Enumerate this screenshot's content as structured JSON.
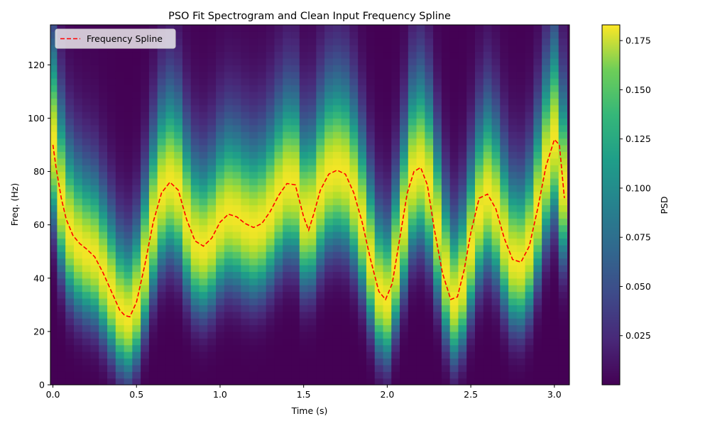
{
  "chart_data": {
    "type": "heatmap",
    "title": "PSO Fit Spectrogram and Clean Input Frequency Spline",
    "xlabel": "Time (s)",
    "ylabel": "Freq. (Hz)",
    "xlim": [
      -0.015,
      3.09
    ],
    "ylim": [
      0,
      135
    ],
    "x_ticks": [
      0.0,
      0.5,
      1.0,
      1.5,
      2.0,
      2.5,
      3.0
    ],
    "x_tick_labels": [
      "0.0",
      "0.5",
      "1.0",
      "1.5",
      "2.0",
      "2.5",
      "3.0"
    ],
    "y_ticks": [
      0,
      20,
      40,
      60,
      80,
      100,
      120
    ],
    "y_tick_labels": [
      "0",
      "20",
      "40",
      "60",
      "80",
      "100",
      "120"
    ],
    "grid": false,
    "legend": {
      "position": "upper-left",
      "entries": [
        "Frequency Spline"
      ]
    },
    "spline": {
      "name": "Frequency Spline",
      "color": "#ff0000",
      "style": "dashed",
      "x": [
        0.0,
        0.02,
        0.05,
        0.08,
        0.12,
        0.16,
        0.2,
        0.25,
        0.3,
        0.35,
        0.4,
        0.43,
        0.46,
        0.5,
        0.55,
        0.6,
        0.65,
        0.7,
        0.75,
        0.8,
        0.85,
        0.9,
        0.95,
        1.0,
        1.05,
        1.1,
        1.15,
        1.2,
        1.25,
        1.3,
        1.35,
        1.4,
        1.45,
        1.5,
        1.53,
        1.56,
        1.6,
        1.65,
        1.7,
        1.75,
        1.8,
        1.85,
        1.9,
        1.95,
        1.99,
        2.03,
        2.07,
        2.12,
        2.16,
        2.2,
        2.24,
        2.28,
        2.33,
        2.38,
        2.42,
        2.46,
        2.5,
        2.55,
        2.6,
        2.65,
        2.7,
        2.75,
        2.8,
        2.85,
        2.9,
        2.95,
        3.0,
        3.03,
        3.06
      ],
      "y": [
        90,
        81,
        70,
        62,
        56,
        53,
        51,
        48,
        42,
        35,
        28,
        26,
        25.5,
        31,
        45,
        61,
        72,
        76,
        73,
        62,
        54,
        52,
        55,
        61,
        64,
        63,
        60.5,
        59,
        60.5,
        65,
        71,
        75.5,
        75,
        63,
        58,
        64,
        73,
        79,
        80.5,
        79,
        72,
        61,
        47,
        35,
        32,
        38,
        53,
        72,
        80,
        81.5,
        75,
        59,
        42,
        32,
        33,
        43,
        57,
        70,
        71.5,
        66,
        55,
        47,
        46,
        52,
        66,
        82,
        92,
        90,
        70
      ]
    },
    "spectrogram": {
      "colormap": "viridis",
      "time_s": [
        0.0,
        0.05,
        0.1,
        0.15,
        0.2,
        0.25,
        0.3,
        0.35,
        0.4,
        0.45,
        0.5,
        0.55,
        0.6,
        0.65,
        0.7,
        0.75,
        0.8,
        0.85,
        0.9,
        0.95,
        1.0,
        1.05,
        1.1,
        1.15,
        1.2,
        1.25,
        1.3,
        1.35,
        1.4,
        1.45,
        1.5,
        1.55,
        1.6,
        1.65,
        1.7,
        1.75,
        1.8,
        1.85,
        1.9,
        1.95,
        2.0,
        2.05,
        2.1,
        2.15,
        2.2,
        2.25,
        2.3,
        2.35,
        2.4,
        2.45,
        2.5,
        2.55,
        2.6,
        2.65,
        2.7,
        2.75,
        2.8,
        2.85,
        2.9,
        2.95,
        3.0,
        3.05
      ],
      "peak_freq_hz": [
        90,
        70,
        58,
        53,
        50,
        48,
        42,
        35,
        28,
        25.5,
        31,
        45,
        61,
        72,
        76,
        73,
        62,
        54,
        52,
        55,
        61,
        64,
        63,
        60.5,
        59,
        60.5,
        65,
        71,
        75.5,
        75,
        63,
        64,
        73,
        79,
        80.5,
        79,
        72,
        61,
        47,
        35,
        32,
        45,
        62,
        78,
        81.5,
        75,
        59,
        42,
        32,
        38,
        52,
        65,
        71.5,
        66,
        55,
        47,
        46,
        52,
        66,
        82,
        92,
        75
      ],
      "peak_psd": 0.18,
      "bandwidth_hz": 20
    },
    "colorbar": {
      "label": "PSD",
      "min": 0.0,
      "max": 0.183,
      "ticks": [
        0.025,
        0.05,
        0.075,
        0.1,
        0.125,
        0.15,
        0.175
      ],
      "tick_labels": [
        "0.025",
        "0.050",
        "0.075",
        "0.100",
        "0.125",
        "0.150",
        "0.175"
      ]
    }
  }
}
